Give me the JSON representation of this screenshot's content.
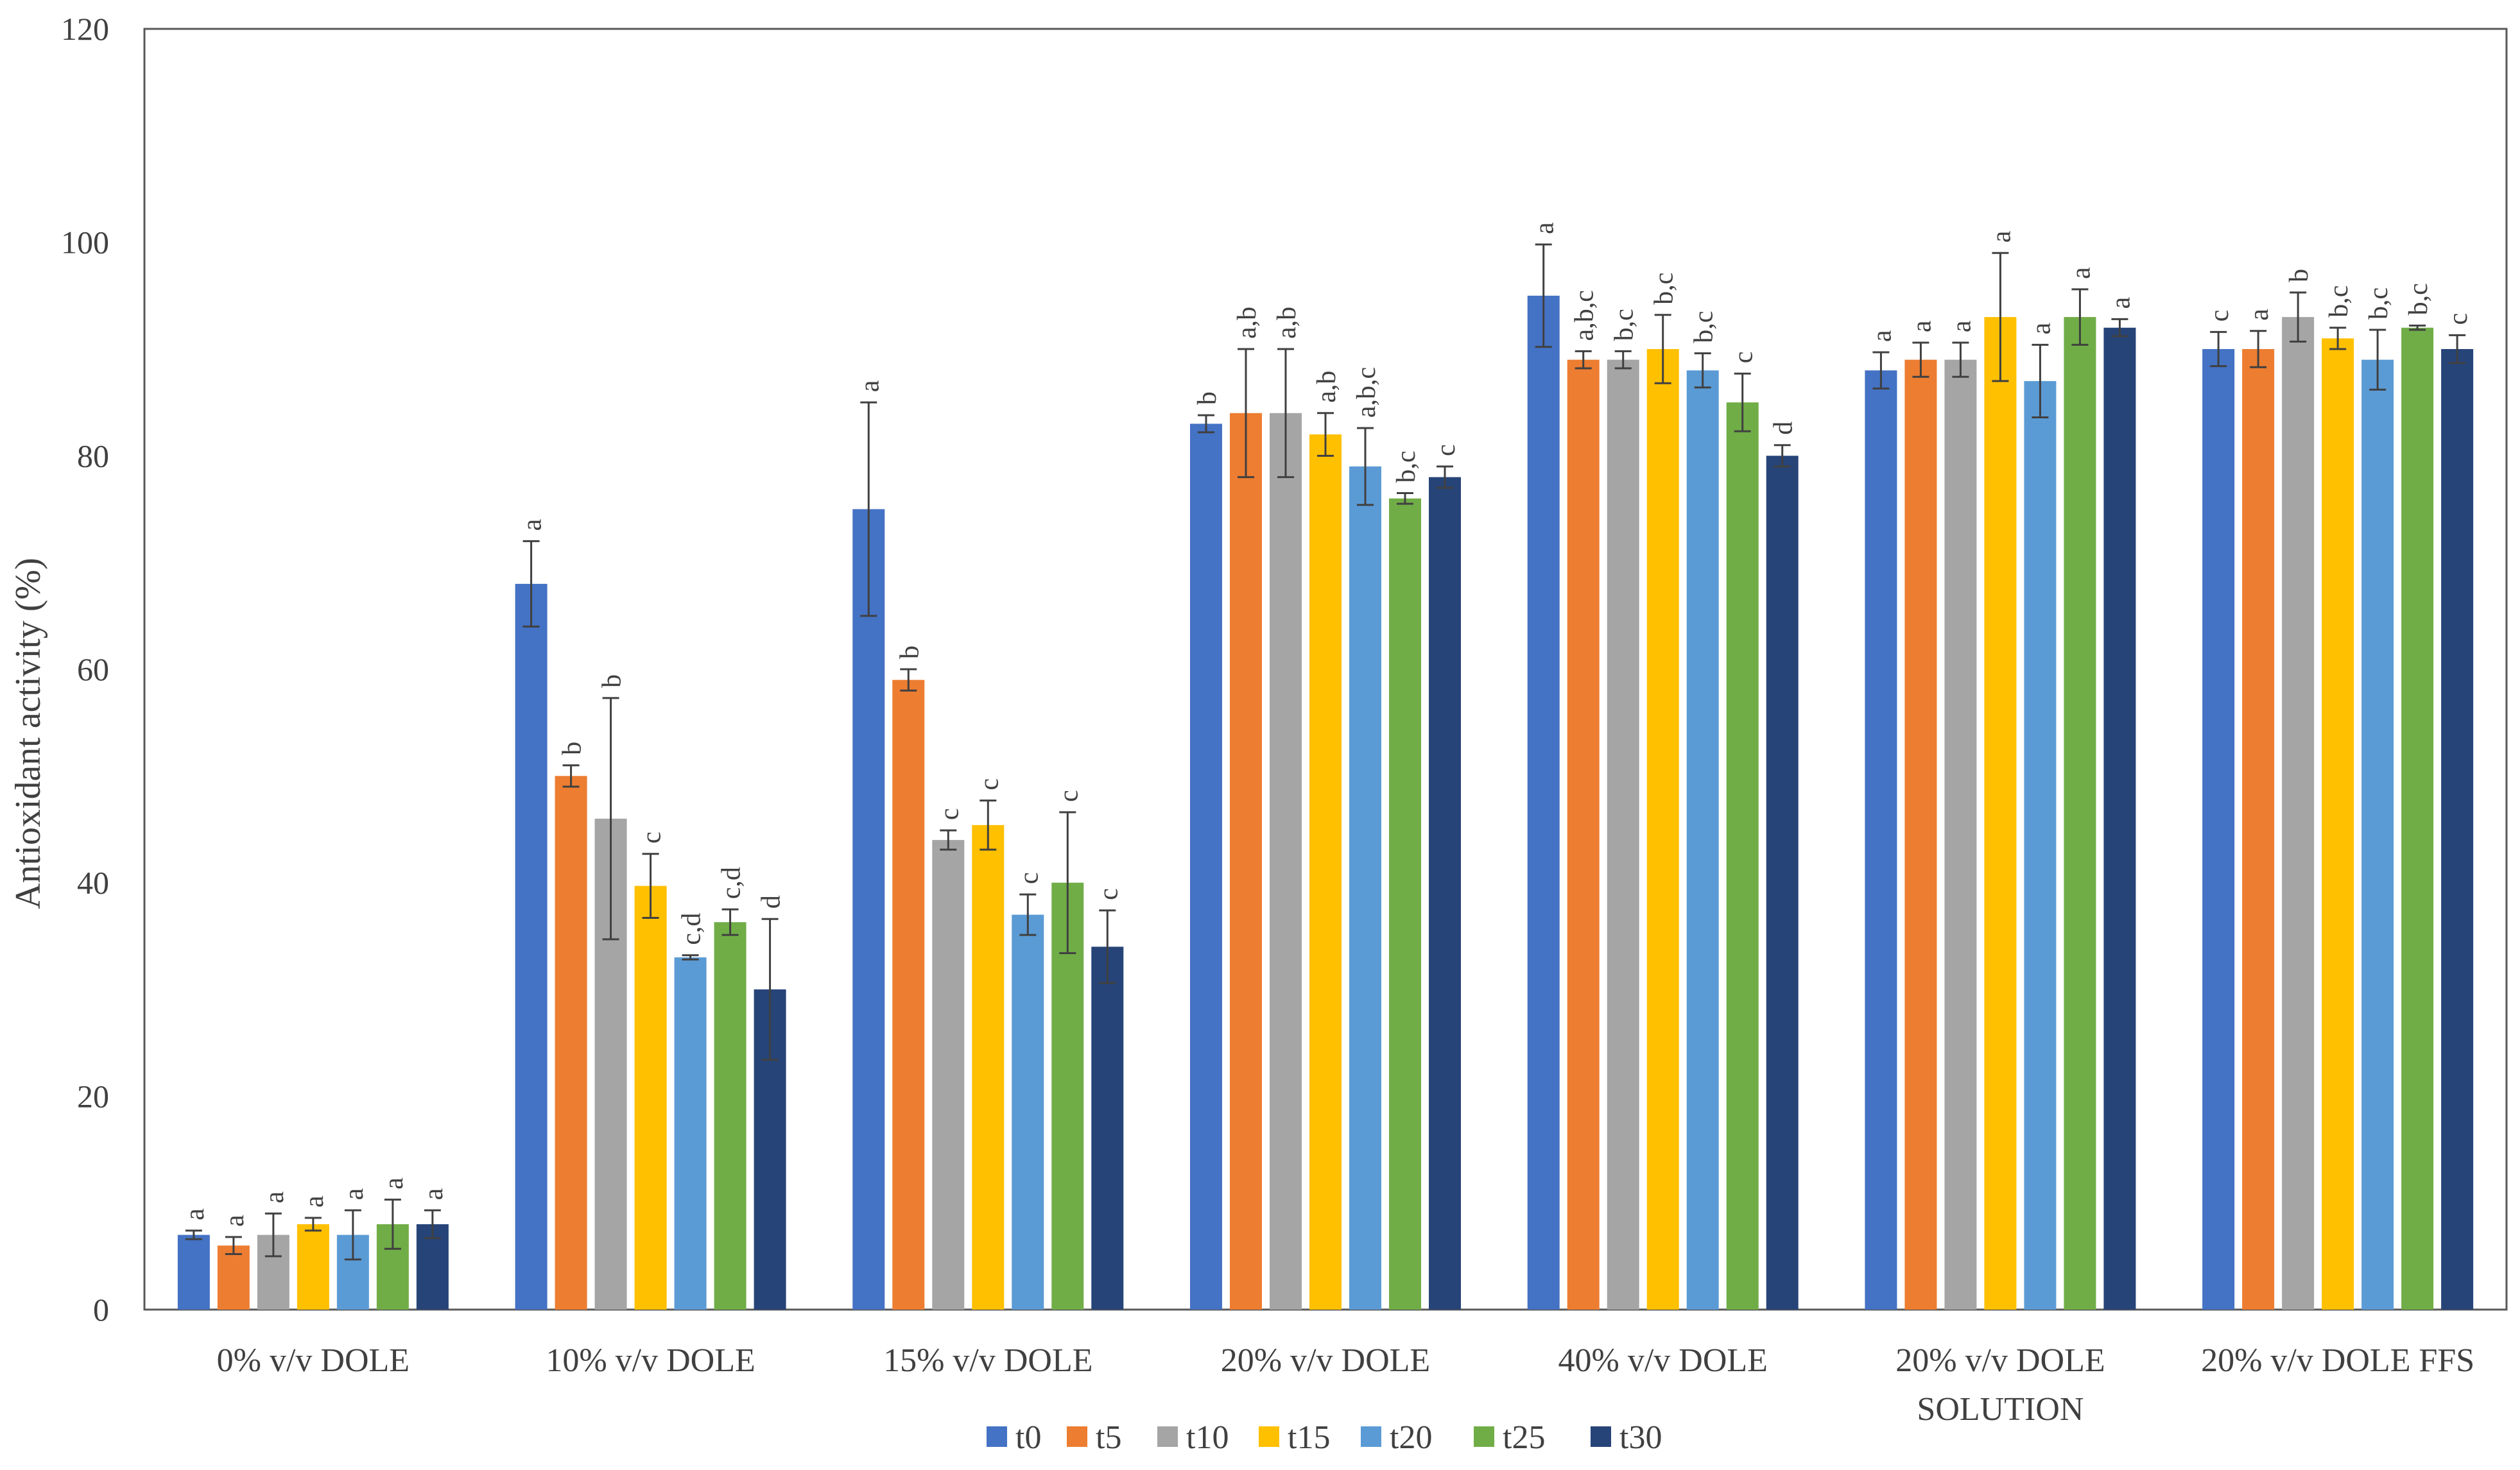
{
  "chart_data": {
    "type": "bar",
    "title": "",
    "xlabel": "",
    "ylabel": "Antioxidant activity (%)",
    "ylim": [
      0,
      120
    ],
    "yticks": [
      0,
      20,
      40,
      60,
      80,
      100,
      120
    ],
    "grid": false,
    "legend_position": "bottom",
    "categories": [
      [
        "0% v/v DOLE"
      ],
      [
        "10% v/v DOLE"
      ],
      [
        "15% v/v DOLE"
      ],
      [
        "20% v/v DOLE"
      ],
      [
        "40% v/v DOLE"
      ],
      [
        "20% v/v DOLE",
        "SOLUTION"
      ],
      [
        "20% v/v DOLE FFS"
      ]
    ],
    "series": [
      {
        "name": "t0",
        "color": "#4472C4",
        "values": [
          7,
          68,
          75,
          83,
          95,
          88,
          90
        ],
        "errors": [
          0.4,
          4,
          10,
          0.8,
          4.8,
          1.7,
          1.6
        ],
        "labels": [
          "a",
          "a",
          "a",
          "b",
          "a",
          "a",
          "c"
        ]
      },
      {
        "name": "t5",
        "color": "#ED7D31",
        "values": [
          6,
          50,
          59,
          84,
          89,
          89,
          90
        ],
        "errors": [
          0.8,
          1,
          1,
          6,
          0.8,
          1.6,
          1.7
        ],
        "labels": [
          "a",
          "b",
          "b",
          "a,b",
          "a,b,c",
          "a",
          "a"
        ]
      },
      {
        "name": "t10",
        "color": "#A5A5A5",
        "values": [
          7,
          46,
          44,
          84,
          89,
          89,
          93
        ],
        "errors": [
          2,
          11.3,
          0.9,
          6,
          0.8,
          1.6,
          2.3
        ],
        "labels": [
          "a",
          "b",
          "c",
          "a,b",
          "b,c",
          "a",
          "b"
        ]
      },
      {
        "name": "t15",
        "color": "#FFC000",
        "values": [
          8,
          39.7,
          45.4,
          82,
          90,
          93,
          91
        ],
        "errors": [
          0.6,
          3,
          2.3,
          2,
          3.2,
          6,
          1
        ],
        "labels": [
          "a",
          "c",
          "c",
          "a,b",
          "b,c",
          "a",
          "b,c"
        ]
      },
      {
        "name": "t20",
        "color": "#5B9BD5",
        "values": [
          7,
          33,
          37,
          79,
          88,
          87,
          89
        ],
        "errors": [
          2.3,
          0.2,
          1.9,
          3.6,
          1.6,
          3.4,
          2.8
        ],
        "labels": [
          "a",
          "c,d",
          "c",
          "a,b,c",
          "b,c",
          "a",
          "b,c"
        ]
      },
      {
        "name": "t25",
        "color": "#70AD47",
        "values": [
          8,
          36.3,
          40,
          76,
          85,
          93,
          92
        ],
        "errors": [
          2.3,
          1.2,
          6.6,
          0.5,
          2.7,
          2.6,
          0.2
        ],
        "labels": [
          "a",
          "c,d",
          "c",
          "b,c",
          "c",
          "a",
          "b,c"
        ]
      },
      {
        "name": "t30",
        "color": "#264478",
        "values": [
          8,
          30,
          34,
          78,
          80,
          92,
          90
        ],
        "errors": [
          1.3,
          6.6,
          3.4,
          1,
          1,
          0.8,
          1.3
        ],
        "labels": [
          "a",
          "d",
          "c",
          "c",
          "d",
          "a",
          "c"
        ]
      }
    ]
  }
}
